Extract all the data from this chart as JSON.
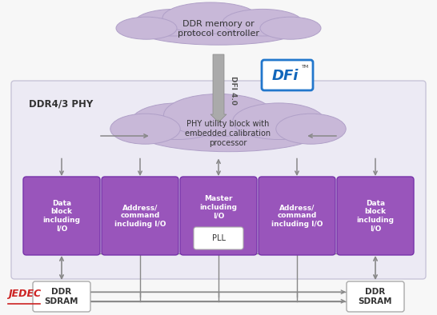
{
  "bg_color": "#f7f7f7",
  "phy_box_color": "#eceaf4",
  "phy_box_edge": "#c8c4d8",
  "cloud_color": "#c8b8d8",
  "cloud_edge": "#b0a0c8",
  "block_color": "#9955bb",
  "block_edge": "#7733aa",
  "sdram_color": "#ffffff",
  "sdram_edge": "#aaaaaa",
  "arrow_color": "#888888",
  "dfi_arrow_color": "#999999",
  "phy_label": "DDR4/3 PHY",
  "top_cloud_text": "DDR memory or\nprotocol controller",
  "mid_cloud_text": "PHY utility block with\nembedded calibration\nprocessor",
  "dfi_text": "DFI 4.0",
  "block_texts": [
    "Data\nblock\nincluding\nI/O",
    "Address/\ncommand\nincluding I/O",
    "Master\nincluding\nI/O",
    "Address/\ncommand\nincluding I/O",
    "Data\nblock\nincluding\nI/O"
  ],
  "pll_label": "PLL",
  "sdram_left_label": "DDR\nSDRAM",
  "sdram_right_label": "DDR\nSDRAM",
  "jedec_text": "JEDEC",
  "dfi_logo_text": "DFi"
}
